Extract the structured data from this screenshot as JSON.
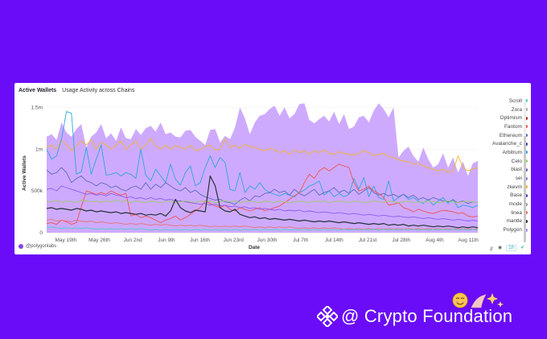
{
  "card": {
    "title": "Active Wallets",
    "subtitle": "Usage Activity across Chains",
    "footer_handle": "@polygonlabs",
    "tool_timeframe": "1h"
  },
  "watermark": {
    "text": "@ Crypto Foundation",
    "logo_icon": "binance-logo-icon",
    "decor": "smiling-face-and-sparkles-emoji"
  },
  "chart_data": {
    "type": "area",
    "xlabel": "Date",
    "ylabel": "Active Wallets",
    "x_ticks": [
      "May 19th",
      "May 26th",
      "Jun 2nd",
      "Jun 9th",
      "Jun 16th",
      "Jun 23rd",
      "Jun 30th",
      "Jul 7th",
      "Jul 14th",
      "Jul 21st",
      "Jul 28th",
      "Aug 4th",
      "Aug 11th"
    ],
    "y_ticks": [
      "0",
      "500k",
      "1m",
      "1.5m"
    ],
    "ylim": [
      0,
      1600000
    ],
    "x_start": "2024-05-15",
    "x_end": "2024-08-13",
    "grid": true,
    "legend_position": "right",
    "legend": [
      {
        "name": "Scroll",
        "color": "#4dd0c4"
      },
      {
        "name": "Zora",
        "color": "#9aa5b1"
      },
      {
        "name": "Optimism",
        "color": "#b22222"
      },
      {
        "name": "Fantom",
        "color": "#ef5350"
      },
      {
        "name": "Ethereum",
        "color": "#5c6bc0"
      },
      {
        "name": "Avalanche_c",
        "color": "#3949ab"
      },
      {
        "name": "Arbitrum",
        "color": "#29a8e0"
      },
      {
        "name": "Celo",
        "color": "#9ccc65"
      },
      {
        "name": "blast",
        "color": "#7e57c2"
      },
      {
        "name": "sei",
        "color": "#7986cb"
      },
      {
        "name": "zkevm",
        "color": "#f0b429"
      },
      {
        "name": "Base",
        "color": "#5e35b1"
      },
      {
        "name": "mode",
        "color": "#90a4ae"
      },
      {
        "name": "linea",
        "color": "#e57373"
      },
      {
        "name": "mantle",
        "color": "#263238"
      },
      {
        "name": "Polygon",
        "color": "#b388ff"
      }
    ],
    "series": [
      {
        "name": "Polygon",
        "color": "#c59bff",
        "style": "area",
        "values": [
          1150000,
          1180000,
          1110000,
          1320000,
          1200000,
          1150000,
          1240000,
          1300000,
          1020000,
          1150000,
          1200000,
          1300000,
          1130000,
          1190000,
          1100000,
          1260000,
          1130000,
          1120000,
          1240000,
          1170000,
          1250000,
          1280000,
          1210000,
          1320000,
          1180000,
          1200000,
          1150000,
          1140000,
          1220000,
          1230000,
          1150000,
          1100000,
          1050000,
          1230000,
          1240000,
          1080000,
          1160000,
          1120000,
          1260000,
          1500000,
          1370000,
          1180000,
          1320000,
          1400000,
          1420000,
          1480000,
          1520000,
          1400000,
          1500000,
          1370000,
          1420000,
          1540000,
          1550000,
          1350000,
          1310000,
          1360000,
          1400000,
          1330000,
          1450000,
          1300000,
          1420000,
          1240000,
          1270000,
          1380000,
          1400000,
          1320000,
          1460000,
          1550000,
          1480000,
          1380000,
          1500000,
          900000,
          980000,
          1030000,
          920000,
          850000,
          1020000,
          880000,
          780000,
          820000,
          950000,
          780000,
          900000,
          720000,
          850000,
          680000,
          830000,
          860000
        ]
      },
      {
        "name": "zkevm",
        "color": "#f0b429",
        "values": [
          1020000,
          1050000,
          1000000,
          1110000,
          1050000,
          980000,
          1040000,
          1100000,
          1050000,
          1110000,
          1000000,
          1080000,
          1050000,
          1000000,
          1050000,
          1100000,
          1000000,
          1050000,
          1100000,
          1000000,
          1050000,
          1130000,
          1040000,
          1000000,
          1050000,
          1000000,
          1040000,
          1020000,
          1000000,
          1050000,
          980000,
          1000000,
          1030000,
          1050000,
          990000,
          1000000,
          1120000,
          1020000,
          1050000,
          1010000,
          1060000,
          1030000,
          1020000,
          1000000,
          980000,
          1010000,
          990000,
          960000,
          980000,
          940000,
          990000,
          960000,
          980000,
          940000,
          980000,
          960000,
          990000,
          950000,
          940000,
          970000,
          950000,
          940000,
          930000,
          950000,
          980000,
          960000,
          920000,
          940000,
          950000,
          910000,
          900000,
          870000,
          860000,
          850000,
          820000,
          830000,
          800000,
          780000,
          760000,
          740000,
          760000,
          720000,
          740000,
          920000,
          780000,
          740000,
          760000,
          780000
        ]
      },
      {
        "name": "Arbitrum",
        "color": "#29a8e0",
        "values": [
          1000000,
          880000,
          920000,
          1120000,
          1450000,
          1430000,
          700000,
          730000,
          1020000,
          700000,
          880000,
          1050000,
          690000,
          700000,
          720000,
          680000,
          720000,
          700000,
          650000,
          1000000,
          690000,
          620000,
          760000,
          680000,
          600000,
          820000,
          640000,
          570000,
          720000,
          800000,
          560000,
          600000,
          780000,
          920000,
          780000,
          900000,
          840000,
          520000,
          500000,
          720000,
          480000,
          560000,
          520000,
          600000,
          520000,
          480000,
          460000,
          440000,
          470000,
          450000,
          430000,
          480000,
          510000,
          560000,
          580000,
          620000,
          450000,
          500000,
          430000,
          470000,
          430000,
          460000,
          650000,
          520000,
          660000,
          430000,
          560000,
          420000,
          400000,
          620000,
          380000,
          420000,
          460000,
          400000,
          420000,
          380000,
          350000,
          400000,
          330000,
          380000,
          420000,
          350000,
          400000,
          300000,
          330000,
          320000,
          300000,
          330000
        ]
      },
      {
        "name": "Ethereum",
        "color": "#5c6bc0",
        "values": [
          750000,
          700000,
          720000,
          780000,
          720000,
          600000,
          650000,
          680000,
          620000,
          600000,
          560000,
          600000,
          580000,
          540000,
          560000,
          520000,
          500000,
          540000,
          560000,
          520000,
          600000,
          520000,
          580000,
          540000,
          600000,
          560000,
          520000,
          500000,
          540000,
          480000,
          510000,
          460000,
          430000,
          410000,
          390000,
          400000,
          370000,
          360000,
          340000,
          390000,
          420000,
          380000,
          440000,
          430000,
          470000,
          480000,
          520000,
          480000,
          500000,
          450000,
          520000,
          470000,
          440000,
          480000,
          520000,
          450000,
          480000,
          500000,
          540000,
          480000,
          510000,
          470000,
          520000,
          460000,
          500000,
          540000,
          480000,
          450000,
          470000,
          440000,
          460000,
          430000,
          460000,
          420000,
          450000,
          400000,
          420000,
          390000,
          420000,
          400000,
          380000,
          370000,
          390000,
          360000,
          380000,
          350000,
          370000,
          360000
        ]
      },
      {
        "name": "Fantom",
        "color": "#ef5350",
        "values": [
          110000,
          120000,
          100000,
          150000,
          130000,
          100000,
          120000,
          310000,
          500000,
          480000,
          460000,
          480000,
          460000,
          500000,
          470000,
          450000,
          470000,
          200000,
          220000,
          180000,
          200000,
          180000,
          150000,
          120000,
          150000,
          170000,
          200000,
          150000,
          180000,
          220000,
          260000,
          300000,
          380000,
          350000,
          320000,
          300000,
          330000,
          280000,
          260000,
          300000,
          280000,
          260000,
          280000,
          300000,
          260000,
          280000,
          300000,
          320000,
          360000,
          400000,
          440000,
          480000,
          600000,
          700000,
          650000,
          740000,
          780000,
          740000,
          780000,
          820000,
          800000,
          780000,
          600000,
          500000,
          520000,
          560000,
          500000,
          470000,
          420000,
          330000,
          340000,
          360000,
          300000,
          280000,
          250000,
          280000,
          260000,
          240000,
          230000,
          250000,
          270000,
          260000,
          250000,
          230000,
          240000,
          200000,
          190000,
          200000
        ]
      },
      {
        "name": "Base",
        "color": "#8e5cf0",
        "values": [
          520000,
          530000,
          500000,
          560000,
          540000,
          520000,
          500000,
          480000,
          460000,
          470000,
          450000,
          460000,
          440000,
          470000,
          450000,
          440000,
          420000,
          430000,
          410000,
          420000,
          400000,
          420000,
          400000,
          410000,
          390000,
          400000,
          380000,
          380000,
          370000,
          360000,
          350000,
          340000,
          350000,
          330000,
          340000,
          320000,
          330000,
          310000,
          320000,
          300000,
          310000,
          290000,
          300000,
          280000,
          290000,
          280000,
          270000,
          280000,
          260000,
          270000,
          260000,
          270000,
          250000,
          260000,
          250000,
          240000,
          250000,
          240000,
          230000,
          240000,
          230000,
          220000,
          230000,
          220000,
          210000,
          220000,
          210000,
          200000,
          210000,
          200000,
          190000,
          200000,
          190000,
          180000,
          190000,
          180000,
          170000,
          180000,
          170000,
          160000,
          170000,
          160000,
          150000,
          160000,
          150000,
          140000,
          150000,
          140000
        ]
      },
      {
        "name": "Celo",
        "color": "#9ccc65",
        "values": [
          380000,
          370000,
          390000,
          360000,
          380000,
          370000,
          360000,
          390000,
          380000,
          370000,
          380000,
          360000,
          380000,
          370000,
          390000,
          370000,
          380000,
          360000,
          380000,
          370000,
          360000,
          380000,
          370000,
          360000,
          370000,
          380000,
          360000,
          370000,
          380000,
          370000,
          360000,
          380000,
          370000,
          380000,
          360000,
          370000,
          380000,
          370000,
          380000,
          360000,
          370000,
          380000,
          370000,
          360000,
          380000,
          370000,
          360000,
          380000,
          370000,
          360000,
          370000,
          380000,
          370000,
          360000,
          380000,
          370000,
          380000,
          360000,
          370000,
          380000,
          370000,
          360000,
          380000,
          370000,
          360000,
          370000,
          380000,
          370000,
          360000,
          380000,
          370000,
          360000,
          370000,
          380000,
          360000,
          370000,
          360000,
          380000,
          370000,
          360000,
          370000,
          380000,
          370000,
          360000,
          370000,
          380000,
          370000,
          360000
        ]
      },
      {
        "name": "mantle",
        "color": "#263238",
        "values": [
          290000,
          300000,
          280000,
          290000,
          280000,
          270000,
          290000,
          280000,
          260000,
          270000,
          250000,
          260000,
          250000,
          240000,
          250000,
          230000,
          240000,
          230000,
          220000,
          230000,
          210000,
          220000,
          210000,
          230000,
          200000,
          260000,
          400000,
          300000,
          260000,
          240000,
          270000,
          260000,
          250000,
          680000,
          560000,
          300000,
          260000,
          250000,
          280000,
          220000,
          200000,
          180000,
          190000,
          170000,
          180000,
          160000,
          170000,
          160000,
          150000,
          160000,
          150000,
          140000,
          150000,
          140000,
          130000,
          140000,
          130000,
          140000,
          130000,
          120000,
          130000,
          120000,
          110000,
          120000,
          110000,
          100000,
          110000,
          100000,
          110000,
          90000,
          100000,
          90000,
          100000,
          80000,
          90000,
          80000,
          90000,
          80000,
          70000,
          80000,
          70000,
          80000,
          70000,
          60000,
          70000,
          60000,
          70000,
          60000
        ]
      },
      {
        "name": "linea",
        "color": "#e57373",
        "values": [
          150000,
          160000,
          140000,
          150000,
          140000,
          130000,
          150000,
          140000,
          130000,
          140000,
          120000,
          130000,
          120000,
          110000,
          120000,
          110000,
          100000,
          110000,
          100000,
          110000,
          100000,
          90000,
          100000,
          90000,
          100000,
          90000,
          80000,
          90000,
          80000,
          90000,
          80000,
          90000,
          80000,
          70000,
          80000,
          70000,
          80000,
          70000,
          80000,
          70000,
          80000,
          70000,
          60000,
          70000,
          60000,
          70000,
          60000,
          70000,
          60000,
          70000,
          60000,
          50000,
          60000,
          50000,
          60000,
          50000,
          60000,
          50000,
          60000,
          50000,
          40000,
          50000,
          40000,
          50000,
          40000,
          50000,
          40000,
          50000,
          40000,
          50000,
          40000,
          50000,
          40000,
          50000,
          40000,
          50000,
          40000,
          50000,
          40000,
          50000,
          40000,
          50000,
          40000,
          50000,
          40000,
          50000,
          40000,
          50000
        ]
      },
      {
        "name": "Scroll",
        "color": "#4dd0c4",
        "values": [
          60000,
          70000,
          60000,
          50000,
          60000,
          50000,
          60000,
          50000,
          60000,
          50000,
          40000,
          50000,
          40000,
          50000,
          40000,
          50000,
          40000,
          50000,
          40000,
          50000,
          40000,
          30000,
          40000,
          30000,
          40000,
          30000,
          40000,
          30000,
          40000,
          30000,
          40000,
          30000,
          40000,
          30000,
          40000,
          30000,
          40000,
          30000,
          40000,
          30000,
          40000,
          30000,
          40000,
          30000,
          40000,
          30000,
          40000,
          30000,
          40000,
          30000,
          40000,
          30000,
          40000,
          30000,
          40000,
          30000,
          40000,
          30000,
          40000,
          30000,
          40000,
          30000,
          40000,
          30000,
          40000,
          30000,
          40000,
          30000,
          40000,
          30000,
          40000,
          30000,
          40000,
          30000,
          40000,
          30000,
          40000,
          30000,
          40000,
          30000,
          40000,
          30000,
          40000,
          30000,
          40000,
          30000,
          40000,
          30000
        ]
      }
    ]
  }
}
